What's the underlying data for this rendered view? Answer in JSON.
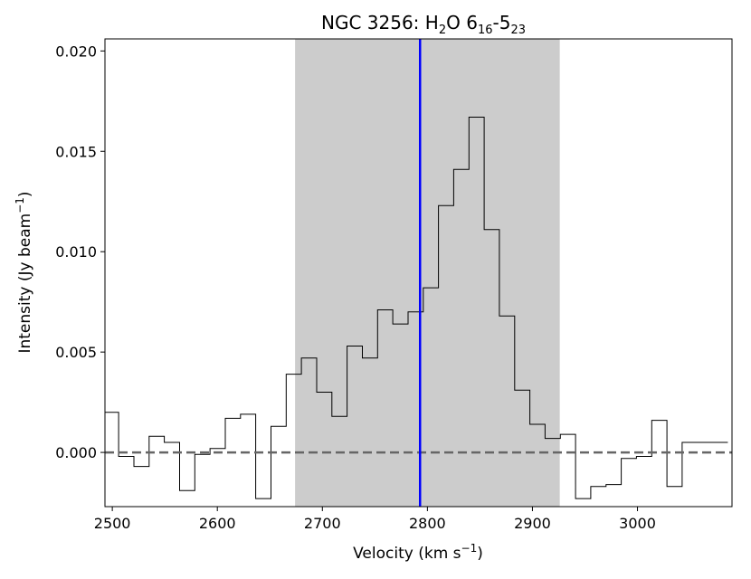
{
  "chart_data": {
    "type": "line",
    "drawstyle": "steps-mid",
    "title": {
      "main": "NGC 3256: H",
      "sub1": "2",
      "mid": "O 6",
      "sub2": "16",
      "dash": "-5",
      "sub3": "23"
    },
    "xlabel": {
      "main": "Velocity (km s",
      "sup": "−1",
      "end": ")"
    },
    "ylabel": {
      "main": "Intensity (Jy beam",
      "sup": "−1",
      "end": ")"
    },
    "xlim": [
      2493,
      3090
    ],
    "ylim": [
      -0.0027,
      0.0206
    ],
    "xticks": [
      2500,
      2600,
      2700,
      2800,
      2900,
      3000
    ],
    "xtick_labels": [
      "2500",
      "2600",
      "2700",
      "2800",
      "2900",
      "3000"
    ],
    "yticks": [
      0.0,
      0.005,
      0.01,
      0.015,
      0.02
    ],
    "ytick_labels": [
      "0.000",
      "0.005",
      "0.010",
      "0.015",
      "0.020"
    ],
    "grid": false,
    "bin_width": 14.5,
    "series": [
      {
        "x": [
          2498.8,
          2513.3,
          2527.8,
          2542.3,
          2556.8,
          2571.3,
          2585.8,
          2600.3,
          2614.8,
          2629.3,
          2643.8,
          2658.3,
          2672.8,
          2687.3,
          2701.8,
          2716.3,
          2730.8,
          2745.3,
          2759.8,
          2774.3,
          2788.8,
          2803.3,
          2817.8,
          2832.3,
          2846.8,
          2861.3,
          2875.8,
          2890.3,
          2904.8,
          2919.3,
          2933.8,
          2948.3,
          2962.8,
          2977.3,
          2991.8,
          3006.3,
          3020.8,
          3035.3,
          3049.8,
          3064.3,
          3078.8
        ],
        "y": [
          0.002,
          -0.0002,
          -0.0007,
          0.0008,
          0.0005,
          -0.0019,
          -0.0001,
          0.0002,
          0.0017,
          0.0019,
          -0.0023,
          0.0013,
          0.0039,
          0.0047,
          0.003,
          0.0018,
          0.0053,
          0.0047,
          0.0071,
          0.0064,
          0.007,
          0.0082,
          0.0123,
          0.0141,
          0.0167,
          0.0111,
          0.0068,
          0.0031,
          0.0014,
          0.0007,
          0.0009,
          -0.0023,
          -0.0017,
          -0.0016,
          -0.0003,
          -0.0002,
          0.0016,
          -0.0017,
          0.0005,
          0.0005,
          0.0005
        ],
        "color": "#000000"
      }
    ],
    "annotations": {
      "shaded_band": {
        "x0": 2674,
        "x1": 2926,
        "color": "#cccccc"
      },
      "vertical_line": {
        "x": 2793,
        "color": "#0000ff"
      },
      "zero_line": {
        "y": 0,
        "style": "dashed",
        "color": "#666666"
      }
    }
  }
}
